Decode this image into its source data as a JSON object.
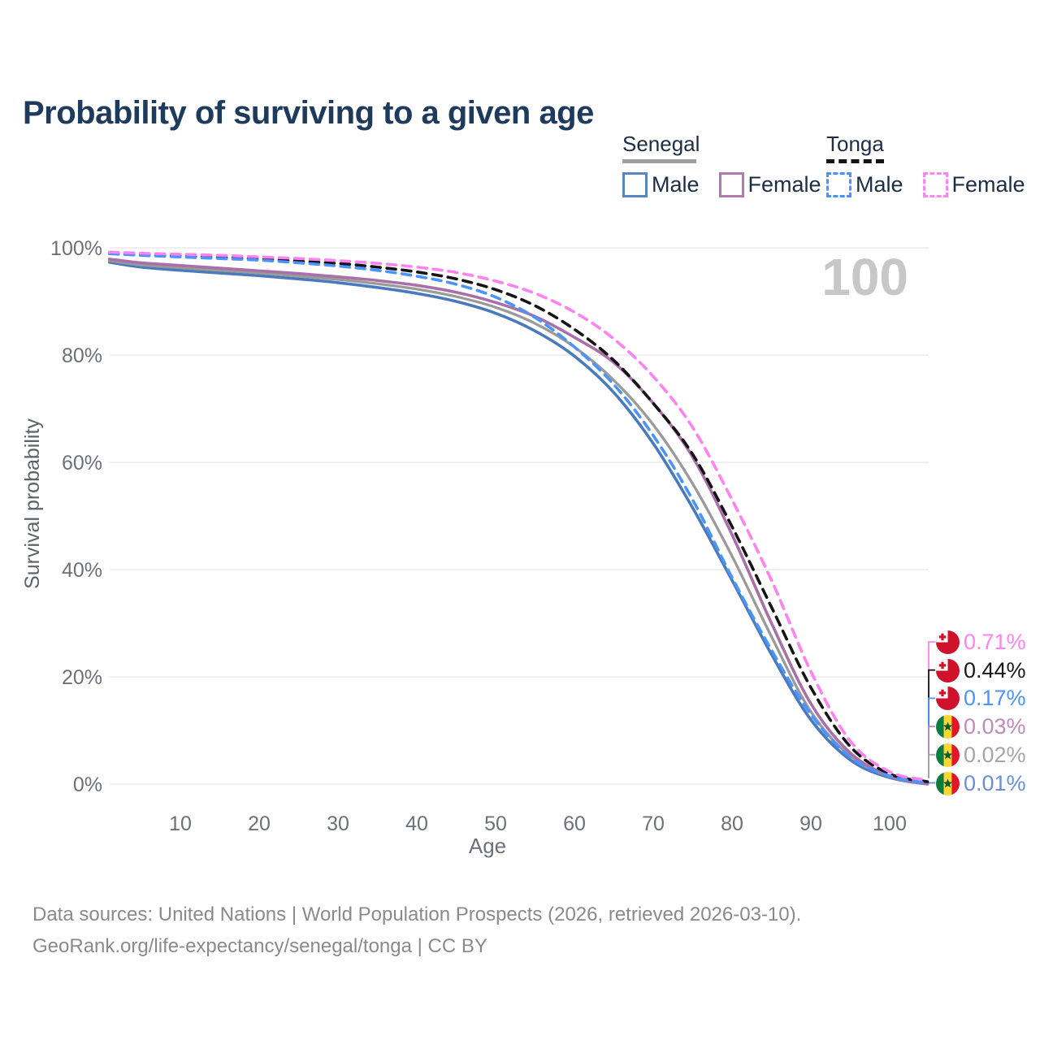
{
  "colors": {
    "title_text": "#1e3a5c",
    "legend_text": "#1d2d44",
    "axis_text": "#6e7079",
    "axis_title_text": "#5f6368",
    "grid": "#e5e5e5",
    "watermark": "#c7c7c7",
    "footer_text": "#8a8a8a"
  },
  "legend": {
    "groups": [
      {
        "name": "Senegal",
        "line_style": "solid",
        "underline_color": "#9e9e9e",
        "items": [
          {
            "label": "Male",
            "color": "#5b84c4"
          },
          {
            "label": "Female",
            "color": "#b279ae"
          }
        ]
      },
      {
        "name": "Tonga",
        "line_style": "dashed",
        "underline_color": "#141414",
        "items": [
          {
            "label": "Male",
            "color": "#4b93ff"
          },
          {
            "label": "Female",
            "color": "#ff85f3"
          }
        ]
      }
    ]
  },
  "watermark": "100",
  "flags": {
    "tonga": {
      "red": "#d0112b",
      "white": "#ffffff"
    },
    "senegal": {
      "green": "#0b7b3e",
      "yellow": "#fdd535",
      "red": "#e0162b",
      "star": "#0a5c2e"
    }
  },
  "chart_data": {
    "type": "line",
    "title": "Probability of surviving to a given age",
    "xlabel": "Age",
    "ylabel": "Survival probability",
    "xlim": [
      0,
      105
    ],
    "ylim": [
      0,
      100
    ],
    "x_ticks": [
      10,
      20,
      30,
      40,
      50,
      60,
      70,
      80,
      90,
      100
    ],
    "y_ticks": [
      0,
      20,
      40,
      60,
      80,
      100
    ],
    "y_tick_suffix": "%",
    "grid": "horizontal-only",
    "legend_position": "top-right",
    "x": [
      1,
      5,
      10,
      15,
      20,
      25,
      30,
      35,
      40,
      45,
      50,
      55,
      60,
      65,
      70,
      75,
      80,
      85,
      90,
      95,
      100,
      104.8
    ],
    "series": [
      {
        "name": "Senegal Male",
        "country": "Senegal",
        "sex": "Male",
        "color": "#4a7abe",
        "dash": false,
        "end_label": "0.01%",
        "values": [
          97.3,
          96.4,
          95.8,
          95.3,
          94.8,
          94.2,
          93.5,
          92.6,
          91.5,
          90.0,
          87.8,
          84.5,
          79.8,
          73.0,
          63.5,
          51.5,
          38.0,
          24.2,
          12.0,
          4.5,
          1.2,
          0.01
        ]
      },
      {
        "name": "Senegal Both sexes",
        "country": "Senegal",
        "sex": "Both",
        "color": "#9a9a9a",
        "dash": false,
        "end_label": "0.02%",
        "values": [
          97.6,
          96.8,
          96.3,
          95.8,
          95.3,
          94.7,
          94.1,
          93.3,
          92.3,
          90.9,
          88.9,
          85.9,
          81.5,
          75.3,
          67.0,
          56.0,
          42.5,
          27.5,
          13.5,
          5.2,
          1.4,
          0.02
        ]
      },
      {
        "name": "Senegal Female",
        "country": "Senegal",
        "sex": "Female",
        "color": "#a96fa9",
        "dash": false,
        "end_label": "0.03%",
        "values": [
          97.9,
          97.2,
          96.7,
          96.2,
          95.7,
          95.2,
          94.6,
          93.9,
          93.0,
          91.7,
          89.8,
          87.2,
          83.3,
          78.6,
          71.0,
          61.0,
          46.5,
          30.0,
          15.0,
          5.8,
          1.5,
          0.03
        ]
      },
      {
        "name": "Tonga Both sexes",
        "country": "Tonga",
        "sex": "Both",
        "color": "#141414",
        "dash": true,
        "end_label": "0.44%",
        "values": [
          99.0,
          98.7,
          98.5,
          98.2,
          97.9,
          97.5,
          97.1,
          96.4,
          95.5,
          94.2,
          92.2,
          89.2,
          84.8,
          79.0,
          71.0,
          61.5,
          48.0,
          33.0,
          18.0,
          7.0,
          1.9,
          0.44
        ]
      },
      {
        "name": "Tonga Male",
        "country": "Tonga",
        "sex": "Male",
        "color": "#4b93ff",
        "dash": true,
        "end_label": "0.17%",
        "values": [
          98.9,
          98.6,
          98.3,
          98.0,
          97.7,
          97.2,
          96.6,
          95.8,
          94.7,
          93.2,
          90.8,
          87.0,
          81.5,
          74.5,
          65.0,
          53.0,
          38.5,
          25.0,
          13.0,
          5.0,
          1.5,
          0.17
        ]
      },
      {
        "name": "Tonga Female",
        "country": "Tonga",
        "sex": "Female",
        "color": "#ff82f0",
        "dash": true,
        "end_label": "0.71%",
        "values": [
          99.2,
          99.0,
          98.8,
          98.6,
          98.3,
          98.0,
          97.6,
          97.1,
          96.4,
          95.4,
          93.8,
          91.5,
          88.0,
          83.0,
          76.0,
          66.5,
          53.0,
          38.0,
          21.0,
          8.0,
          2.3,
          0.71
        ]
      }
    ],
    "end_labels": [
      {
        "flag": "tonga",
        "value": "0.71%",
        "color": "#ff82f0"
      },
      {
        "flag": "tonga",
        "value": "0.44%",
        "color": "#1a1a1a"
      },
      {
        "flag": "tonga",
        "value": "0.17%",
        "color": "#4b93ff"
      },
      {
        "flag": "senegal",
        "value": "0.03%",
        "color": "#c18abd"
      },
      {
        "flag": "senegal",
        "value": "0.02%",
        "color": "#a6a6a6"
      },
      {
        "flag": "senegal",
        "value": "0.01%",
        "color": "#6b8fd4"
      }
    ]
  },
  "footer": {
    "line1": "Data sources: United Nations | World Population Prospects (2026, retrieved 2026-03-10).",
    "line2": "GeoRank.org/life-expectancy/senegal/tonga | CC BY"
  }
}
